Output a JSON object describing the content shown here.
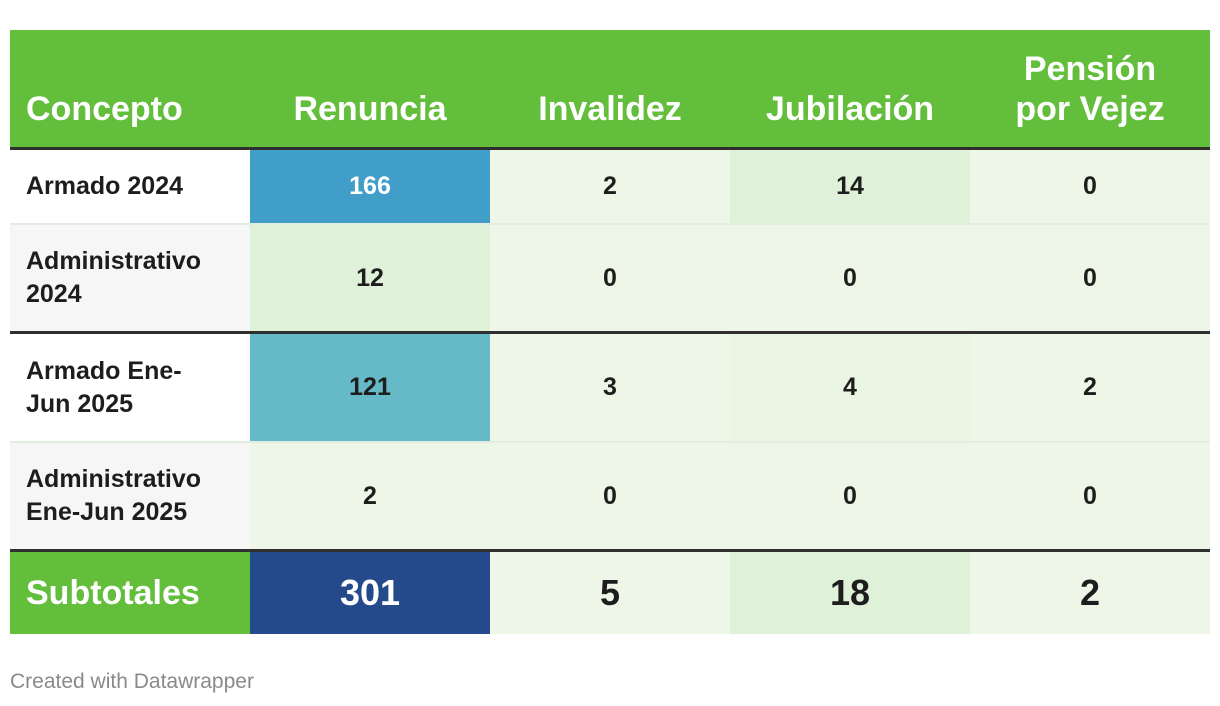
{
  "chart_data": {
    "type": "table",
    "columns": [
      "Concepto",
      "Renuncia",
      "Invalidez",
      "Jubilación",
      "Pensión por Vejez"
    ],
    "rows": [
      {
        "concepto": "Armado 2024",
        "values": [
          "166",
          "2",
          "14",
          "0"
        ]
      },
      {
        "concepto": "Administrativo 2024",
        "values": [
          "12",
          "0",
          "0",
          "0"
        ]
      },
      {
        "concepto": "Armado Ene-Jun 2025",
        "values": [
          "121",
          "3",
          "4",
          "2"
        ]
      },
      {
        "concepto": "Administrativo Ene-Jun 2025",
        "values": [
          "2",
          "0",
          "0",
          "0"
        ]
      }
    ],
    "totals": {
      "label": "Subtotales",
      "values": [
        "301",
        "5",
        "18",
        "2"
      ]
    }
  },
  "colors": {
    "header_bg": "#63be3c",
    "header_text": "#ffffff",
    "renuncia_max": "#254a8c",
    "renuncia_high": "#419ec9",
    "renuncia_mid": "#66b9c7",
    "light_green": "#eef7e7",
    "mid_green": "#dff1d8",
    "label_alt_bg": "#f6f6f6"
  },
  "footer": {
    "credit": "Created with Datawrapper"
  }
}
